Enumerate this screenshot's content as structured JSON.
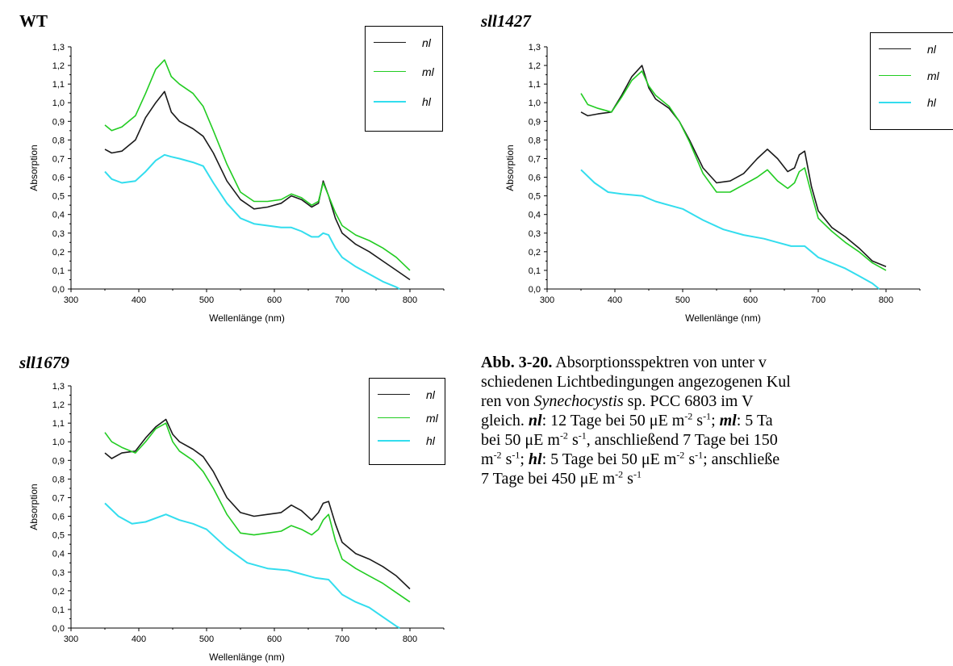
{
  "chart_data": [
    {
      "type": "line",
      "panel_title": "WT",
      "xlabel": "Wellenlänge (nm)",
      "ylabel": "Absorption",
      "xlim": [
        300,
        850
      ],
      "ylim": [
        0,
        1.3
      ],
      "xticks": [
        "300",
        "400",
        "500",
        "600",
        "700",
        "800"
      ],
      "yticks": [
        "0,0",
        "0,1",
        "0,2",
        "0,3",
        "0,4",
        "0,5",
        "0,6",
        "0,7",
        "0,8",
        "0,9",
        "1,0",
        "1,1",
        "1,2",
        "1,3"
      ],
      "legend_placement": "top-right",
      "series": [
        {
          "name": "nl",
          "color": "#1a1a1a",
          "x": [
            350,
            360,
            375,
            395,
            410,
            425,
            438,
            448,
            460,
            480,
            495,
            510,
            530,
            550,
            570,
            590,
            610,
            625,
            640,
            655,
            665,
            672,
            680,
            690,
            700,
            720,
            740,
            760,
            780,
            800
          ],
          "y": [
            0.75,
            0.73,
            0.74,
            0.8,
            0.92,
            1.0,
            1.06,
            0.95,
            0.9,
            0.86,
            0.82,
            0.73,
            0.58,
            0.48,
            0.43,
            0.44,
            0.46,
            0.5,
            0.48,
            0.44,
            0.46,
            0.58,
            0.5,
            0.38,
            0.3,
            0.24,
            0.2,
            0.15,
            0.1,
            0.05
          ]
        },
        {
          "name": "ml",
          "color": "#22cc22",
          "x": [
            350,
            360,
            375,
            395,
            410,
            425,
            438,
            448,
            460,
            480,
            495,
            510,
            530,
            550,
            570,
            590,
            610,
            625,
            640,
            655,
            665,
            672,
            680,
            690,
            700,
            720,
            740,
            760,
            780,
            800
          ],
          "y": [
            0.88,
            0.85,
            0.87,
            0.93,
            1.05,
            1.18,
            1.23,
            1.14,
            1.1,
            1.05,
            0.98,
            0.85,
            0.67,
            0.52,
            0.47,
            0.47,
            0.48,
            0.51,
            0.49,
            0.45,
            0.47,
            0.57,
            0.5,
            0.41,
            0.34,
            0.29,
            0.26,
            0.22,
            0.17,
            0.1
          ]
        },
        {
          "name": "hl",
          "color": "#33ddee",
          "x": [
            350,
            360,
            375,
            395,
            410,
            425,
            438,
            448,
            460,
            480,
            495,
            510,
            530,
            550,
            570,
            590,
            610,
            625,
            640,
            655,
            665,
            672,
            680,
            690,
            700,
            720,
            740,
            760,
            780,
            785
          ],
          "y": [
            0.63,
            0.59,
            0.57,
            0.58,
            0.63,
            0.69,
            0.72,
            0.71,
            0.7,
            0.68,
            0.66,
            0.57,
            0.46,
            0.38,
            0.35,
            0.34,
            0.33,
            0.33,
            0.31,
            0.28,
            0.28,
            0.3,
            0.29,
            0.22,
            0.17,
            0.12,
            0.08,
            0.04,
            0.01,
            0.0
          ]
        }
      ]
    },
    {
      "type": "line",
      "panel_title": "sll1427",
      "xlabel": "Wellenlänge (nm)",
      "ylabel": "Absorption",
      "xlim": [
        300,
        850
      ],
      "ylim": [
        0,
        1.3
      ],
      "xticks": [
        "300",
        "400",
        "500",
        "600",
        "700",
        "800"
      ],
      "yticks": [
        "0,0",
        "0,1",
        "0,2",
        "0,3",
        "0,4",
        "0,5",
        "0,6",
        "0,7",
        "0,8",
        "0,9",
        "1,0",
        "1,1",
        "1,2",
        "1,3"
      ],
      "legend_placement": "top-right",
      "series": [
        {
          "name": "nl",
          "color": "#1a1a1a",
          "x": [
            350,
            360,
            375,
            395,
            410,
            425,
            440,
            450,
            460,
            480,
            495,
            510,
            530,
            550,
            570,
            590,
            610,
            625,
            640,
            655,
            665,
            672,
            680,
            690,
            700,
            720,
            740,
            760,
            780,
            800
          ],
          "y": [
            0.95,
            0.93,
            0.94,
            0.95,
            1.04,
            1.14,
            1.2,
            1.08,
            1.02,
            0.97,
            0.9,
            0.8,
            0.65,
            0.57,
            0.58,
            0.62,
            0.7,
            0.75,
            0.7,
            0.63,
            0.65,
            0.72,
            0.74,
            0.55,
            0.42,
            0.33,
            0.28,
            0.22,
            0.15,
            0.12
          ]
        },
        {
          "name": "ml",
          "color": "#22cc22",
          "x": [
            350,
            360,
            375,
            395,
            410,
            425,
            440,
            450,
            460,
            480,
            495,
            510,
            530,
            550,
            570,
            590,
            610,
            625,
            640,
            655,
            665,
            672,
            680,
            690,
            700,
            720,
            740,
            760,
            780,
            800
          ],
          "y": [
            1.05,
            0.99,
            0.97,
            0.95,
            1.03,
            1.12,
            1.17,
            1.09,
            1.04,
            0.98,
            0.9,
            0.79,
            0.62,
            0.52,
            0.52,
            0.56,
            0.6,
            0.64,
            0.58,
            0.54,
            0.57,
            0.63,
            0.65,
            0.51,
            0.38,
            0.31,
            0.25,
            0.2,
            0.14,
            0.1
          ]
        },
        {
          "name": "hl",
          "color": "#33ddee",
          "x": [
            350,
            370,
            390,
            410,
            440,
            460,
            480,
            500,
            530,
            560,
            590,
            620,
            640,
            660,
            680,
            690,
            700,
            720,
            740,
            760,
            780,
            790
          ],
          "y": [
            0.64,
            0.57,
            0.52,
            0.51,
            0.5,
            0.47,
            0.45,
            0.43,
            0.37,
            0.32,
            0.29,
            0.27,
            0.25,
            0.23,
            0.23,
            0.2,
            0.17,
            0.14,
            0.11,
            0.07,
            0.03,
            0.0
          ]
        }
      ]
    },
    {
      "type": "line",
      "panel_title": "sll1679",
      "xlabel": "Wellenlänge (nm)",
      "ylabel": "Absorption",
      "xlim": [
        300,
        850
      ],
      "ylim": [
        0,
        1.3
      ],
      "xticks": [
        "300",
        "400",
        "500",
        "600",
        "700",
        "800"
      ],
      "yticks": [
        "0,0",
        "0,1",
        "0,2",
        "0,3",
        "0,4",
        "0,5",
        "0,6",
        "0,7",
        "0,8",
        "0,9",
        "1,0",
        "1,1",
        "1,2",
        "1,3"
      ],
      "legend_placement": "top-right",
      "series": [
        {
          "name": "nl",
          "color": "#1a1a1a",
          "x": [
            350,
            360,
            375,
            395,
            410,
            425,
            440,
            450,
            460,
            480,
            495,
            510,
            530,
            550,
            570,
            590,
            610,
            625,
            640,
            655,
            665,
            672,
            680,
            690,
            700,
            720,
            740,
            760,
            780,
            800
          ],
          "y": [
            0.94,
            0.91,
            0.94,
            0.95,
            1.02,
            1.08,
            1.12,
            1.04,
            1.0,
            0.96,
            0.92,
            0.84,
            0.7,
            0.62,
            0.6,
            0.61,
            0.62,
            0.66,
            0.63,
            0.58,
            0.62,
            0.67,
            0.68,
            0.56,
            0.46,
            0.4,
            0.37,
            0.33,
            0.28,
            0.21
          ]
        },
        {
          "name": "ml",
          "color": "#22cc22",
          "x": [
            350,
            360,
            375,
            395,
            410,
            425,
            440,
            450,
            460,
            480,
            495,
            510,
            530,
            550,
            570,
            590,
            610,
            625,
            640,
            655,
            665,
            672,
            680,
            690,
            700,
            720,
            740,
            760,
            780,
            800
          ],
          "y": [
            1.05,
            1.0,
            0.97,
            0.94,
            1.0,
            1.07,
            1.1,
            1.0,
            0.95,
            0.9,
            0.84,
            0.75,
            0.61,
            0.51,
            0.5,
            0.51,
            0.52,
            0.55,
            0.53,
            0.5,
            0.53,
            0.58,
            0.61,
            0.47,
            0.37,
            0.32,
            0.28,
            0.24,
            0.19,
            0.14
          ]
        },
        {
          "name": "hl",
          "color": "#33ddee",
          "x": [
            350,
            370,
            390,
            410,
            440,
            460,
            480,
            500,
            530,
            560,
            590,
            620,
            640,
            660,
            680,
            690,
            700,
            720,
            740,
            760,
            780,
            785
          ],
          "y": [
            0.67,
            0.6,
            0.56,
            0.57,
            0.61,
            0.58,
            0.56,
            0.53,
            0.43,
            0.35,
            0.32,
            0.31,
            0.29,
            0.27,
            0.26,
            0.22,
            0.18,
            0.14,
            0.11,
            0.06,
            0.01,
            0.0
          ]
        }
      ]
    }
  ],
  "caption": {
    "label": "Abb. 3-20.",
    "text_1": " Absorptionsspektren von unter v",
    "text_2": "schiedenen Lichtbedingungen angezogenen Kul",
    "text_3a": "ren von ",
    "organism": "Synechocystis",
    "text_3b": " sp. PCC 6803 im V",
    "text_4a": "gleich. ",
    "nl_key": "nl",
    "text_4b": ": 12 Tage bei 50 μE m",
    "text_4c": " s",
    "text_4d": "; ",
    "ml_key": "ml",
    "text_4e": ": 5 Ta",
    "text_5a": "bei 50 μE m",
    "text_5b": " s",
    "text_5c": ", anschließend 7 Tage bei 150",
    "text_6a": "m",
    "text_6b": " s",
    "text_6c": "; ",
    "hl_key": "hl",
    "text_6d": ": 5 Tage bei 50 μE m",
    "text_6e": " s",
    "text_6f": "; anschließe",
    "text_7a": "7 Tage bei 450 μE m",
    "text_7b": " s",
    "exp_m2": "-2",
    "exp_s1": "-1"
  }
}
